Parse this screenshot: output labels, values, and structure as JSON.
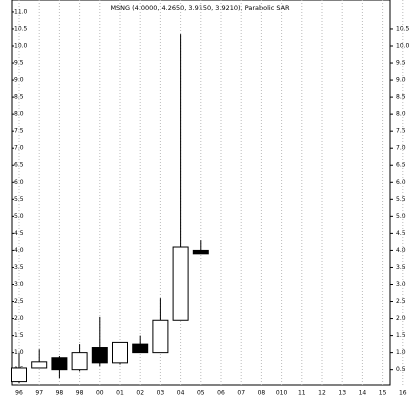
{
  "chart_data": {
    "type": "candlestick",
    "title": "MSNG (4.0000, 4.2650, 3.9150, 3.9210), Parabolic SAR",
    "categories": [
      "96",
      "97",
      "98",
      "98",
      "00",
      "01",
      "02",
      "03",
      "04",
      "05",
      "06",
      "07",
      "08",
      "010",
      "11",
      "12",
      "13",
      "14",
      "15",
      "16"
    ],
    "open": [
      0.15,
      0.55,
      0.85,
      0.5,
      1.15,
      0.7,
      1.25,
      1.0,
      1.95,
      4.0,
      null,
      null,
      null,
      null,
      null,
      null,
      null,
      null,
      null,
      null
    ],
    "high": [
      1.0,
      1.1,
      0.9,
      1.25,
      2.05,
      1.3,
      1.5,
      2.6,
      10.35,
      4.3,
      null,
      null,
      null,
      null,
      null,
      null,
      null,
      null,
      null,
      null
    ],
    "low": [
      0.1,
      0.55,
      0.25,
      0.45,
      0.6,
      0.65,
      1.0,
      1.0,
      1.95,
      3.9,
      null,
      null,
      null,
      null,
      null,
      null,
      null,
      null,
      null,
      null
    ],
    "close": [
      0.55,
      0.73,
      0.5,
      1.0,
      0.7,
      1.3,
      1.0,
      1.95,
      4.1,
      3.9,
      null,
      null,
      null,
      null,
      null,
      null,
      null,
      null,
      null,
      null
    ],
    "up_color": "#ffffff",
    "down_color": "#000000",
    "ylim": [
      0.05,
      11.35
    ],
    "yticks": [
      {
        "value": 0.5,
        "label": "0.5"
      },
      {
        "value": 1,
        "label": "1.0"
      },
      {
        "value": 1.5,
        "label": "1.5"
      },
      {
        "value": 2,
        "label": "2.0"
      },
      {
        "value": 2.5,
        "label": "2.5"
      },
      {
        "value": 3,
        "label": "3.0"
      },
      {
        "value": 3.5,
        "label": "3.5"
      },
      {
        "value": 4,
        "label": "4.0"
      },
      {
        "value": 4.5,
        "label": "4.5"
      },
      {
        "value": 5,
        "label": "5.0"
      },
      {
        "value": 5.5,
        "label": "5.5"
      },
      {
        "value": 6,
        "label": "6.0"
      },
      {
        "value": 6.5,
        "label": "6.5"
      },
      {
        "value": 7,
        "label": "7.0"
      },
      {
        "value": 7.5,
        "label": "7.5"
      },
      {
        "value": 8,
        "label": "8.0"
      },
      {
        "value": 8.5,
        "label": "8.5"
      },
      {
        "value": 9,
        "label": "9.0"
      },
      {
        "value": 9.5,
        "label": "9.5"
      },
      {
        "value": 10,
        "label": "10.0"
      },
      {
        "value": 10.5,
        "label": "10.5"
      },
      {
        "value": 11,
        "label": "11.0"
      }
    ],
    "y2lim": [
      0.05,
      11.35
    ],
    "y2ticks": [
      {
        "value": 0.5,
        "label": "0.5"
      },
      {
        "value": 1,
        "label": "1.0"
      },
      {
        "value": 1.5,
        "label": "1.5"
      },
      {
        "value": 2,
        "label": "2.0"
      },
      {
        "value": 2.5,
        "label": "2.5"
      },
      {
        "value": 3,
        "label": "3.0"
      },
      {
        "value": 3.5,
        "label": "3.5"
      },
      {
        "value": 4,
        "label": "4.0"
      },
      {
        "value": 4.5,
        "label": "4.5"
      },
      {
        "value": 5,
        "label": "5.0"
      },
      {
        "value": 5.5,
        "label": "5.5"
      },
      {
        "value": 6,
        "label": "6.0"
      },
      {
        "value": 6.5,
        "label": "6.5"
      },
      {
        "value": 7,
        "label": "7.0"
      },
      {
        "value": 7.5,
        "label": "7.5"
      },
      {
        "value": 8,
        "label": "8.0"
      },
      {
        "value": 8.5,
        "label": "8.5"
      },
      {
        "value": 9,
        "label": "9.0"
      },
      {
        "value": 9.5,
        "label": "9.5"
      },
      {
        "value": 10,
        "label": "10.0"
      },
      {
        "value": 10.5,
        "label": "10.5"
      }
    ],
    "grid": true
  }
}
